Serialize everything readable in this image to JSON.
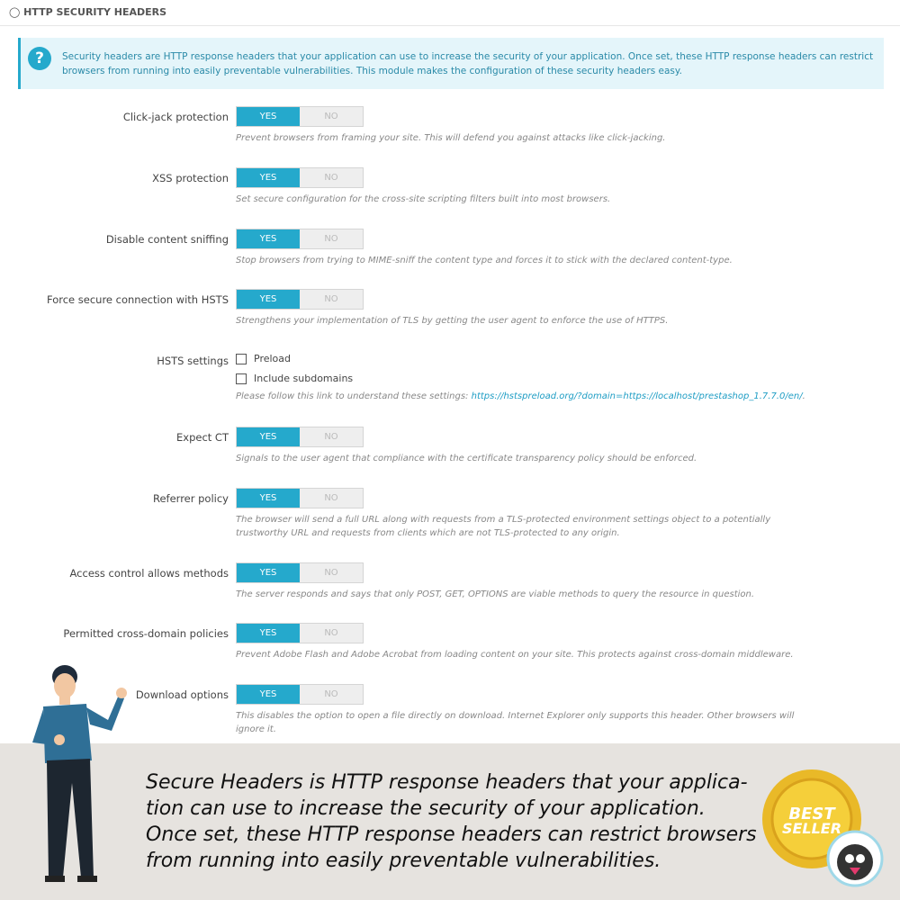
{
  "header": {
    "title": "HTTP SECURITY HEADERS"
  },
  "info": "Security headers are HTTP response headers that your application can use to increase the security of your application. Once set, these HTTP response headers can restrict browsers from running into easily preventable vulnerabilities. This module makes the configuration of these security headers easy.",
  "toggle": {
    "yes": "YES",
    "no": "NO"
  },
  "settings": [
    {
      "label": "Click-jack protection",
      "help": "Prevent browsers from framing your site. This will defend you against attacks like click-jacking."
    },
    {
      "label": "XSS protection",
      "help": "Set secure configuration for the cross-site scripting filters built into most browsers."
    },
    {
      "label": "Disable content sniffing",
      "help": "Stop browsers from trying to MIME-sniff the content type and forces it to stick with the declared content-type."
    },
    {
      "label": "Force secure connection with HSTS",
      "help": "Strengthens your implementation of TLS by getting the user agent to enforce the use of HTTPS."
    },
    {
      "label": "HSTS settings",
      "options": [
        "Preload",
        "Include subdomains"
      ],
      "help": "Please follow this link to understand these settings: ",
      "link": "https://hstspreload.org/?domain=https://localhost/prestashop_1.7.7.0/en/",
      "help_end": "."
    },
    {
      "label": "Expect CT",
      "help": "Signals to the user agent that compliance with the certificate transparency policy should be enforced."
    },
    {
      "label": "Referrer policy",
      "help": "The browser will send a full URL along with requests from a TLS-protected environment settings object to a potentially trustworthy URL and requests from clients which are not TLS-protected to any origin."
    },
    {
      "label": "Access control allows methods",
      "help": "The server responds and says that only POST, GET, OPTIONS are viable methods to query the resource in question."
    },
    {
      "label": "Permitted cross-domain policies",
      "help": "Prevent Adobe Flash and Adobe Acrobat from loading content on your site. This protects against cross-domain middleware."
    },
    {
      "label": "Download options",
      "help": "This disables the option to open a file directly on download. Internet Explorer only supports this header. Other browsers will ignore it."
    }
  ],
  "banner": {
    "lines": [
      "Secure Headers is HTTP response headers that your applica-",
      "tion can use to increase the security of your application.",
      "Once set, these HTTP response headers can restrict browsers",
      "from running into easily preventable vulnerabilities."
    ]
  },
  "badge": {
    "line1": "BEST",
    "line2": "SELLER"
  }
}
